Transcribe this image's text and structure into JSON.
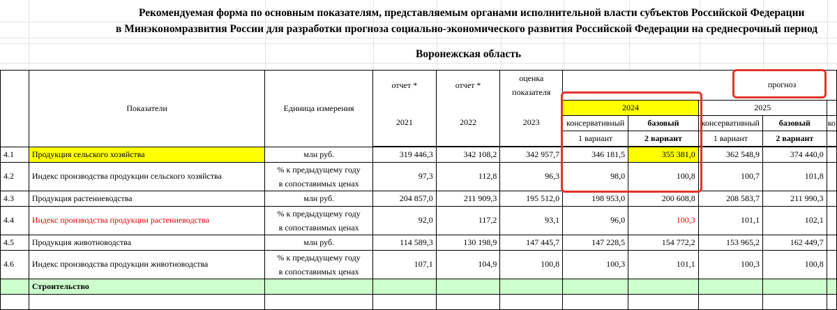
{
  "title_line1": "Рекомендуемая форма по основным показателям, представляемым органами исполнительной власти субъектов Российской Федерации",
  "title_line2": "в Минэкономразвития России для разработки прогноза социально-экономического развития Российской Федерации на среднесрочный период",
  "region": "Воронежская область",
  "header": {
    "indicators": "Показатели",
    "unit": "Единица измерения",
    "report": "отчет *",
    "estimate_l1": "оценка",
    "estimate_l2": "показателя",
    "forecast": "прогноз",
    "y2021": "2021",
    "y2022": "2022",
    "y2023": "2023",
    "y2024": "2024",
    "y2025": "2025",
    "conservative": "консервативный",
    "base": "базовый",
    "variant1": "1 вариант",
    "variant2": "2 вариант",
    "cut": "ко"
  },
  "rows": [
    {
      "num": "4.1",
      "name": "Продукция сельского хозяйства",
      "unit": "млн руб.",
      "v2021": "319 446,3",
      "v2022": "342 108,2",
      "v2023": "342 957,7",
      "c2024": "346 181,5",
      "b2024": "355 381,0",
      "c2025": "362 548,9",
      "b2025": "374 440,0"
    },
    {
      "num": "4.2",
      "name": "Индекс производства продукции сельского хозяйства",
      "unit1": "% к предыдущему году",
      "unit2": "в сопоставимых ценах",
      "v2021": "97,3",
      "v2022": "112,8",
      "v2023": "96,3",
      "c2024": "98,0",
      "b2024": "100,8",
      "c2025": "100,7",
      "b2025": "101,8"
    },
    {
      "num": "4.3",
      "name": "Продукция растениеводства",
      "unit": "млн руб.",
      "v2021": "204 857,0",
      "v2022": "211 909,3",
      "v2023": "195 512,0",
      "c2024": "198 953,0",
      "b2024": "200 608,8",
      "c2025": "208 583,7",
      "b2025": "211 990,3"
    },
    {
      "num": "4.4",
      "name": "Индекс производства продукции растениеводства",
      "unit1": "% к предыдущему году",
      "unit2": "в сопоставимых ценах",
      "v2021": "92,0",
      "v2022": "117,2",
      "v2023": "93,1",
      "c2024": "96,0",
      "b2024": "100,3",
      "c2025": "101,1",
      "b2025": "102,1"
    },
    {
      "num": "4.5",
      "name": "Продукция животноводства",
      "unit": "млн руб.",
      "v2021": "114 589,3",
      "v2022": "130 198,9",
      "v2023": "147 445,7",
      "c2024": "147 228,5",
      "b2024": "154 772,2",
      "c2025": "153 965,2",
      "b2025": "162 449,7"
    },
    {
      "num": "4.6",
      "name": "Индекс производства продукции животноводства",
      "unit1": "% к предыдущему году",
      "unit2": "в сопоставимых ценах",
      "v2021": "107,1",
      "v2022": "104,9",
      "v2023": "100,8",
      "c2024": "100,3",
      "b2024": "101,1",
      "c2025": "100,3",
      "b2025": "100,8"
    }
  ],
  "section": "Строительство",
  "colors": {
    "highlight_yellow": "#ffff00",
    "section_green": "#ccffcc",
    "annotation_red": "#e0352b",
    "text_red": "#e00000"
  }
}
